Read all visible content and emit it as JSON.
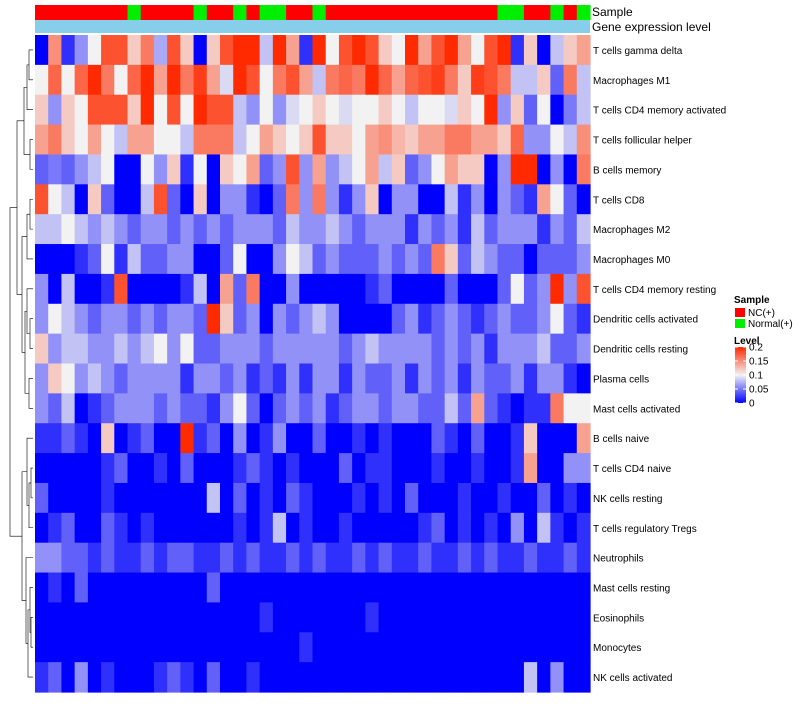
{
  "chart_data": {
    "type": "heatmap",
    "annotation_labels": [
      "Sample",
      "Gene expression level"
    ],
    "rows": [
      "T cells gamma delta",
      "Macrophages M1",
      "T cells CD4 memory activated",
      "T cells follicular helper",
      "B cells memory",
      "T cells CD8",
      "Macrophages M2",
      "Macrophages M0",
      "T cells CD4 memory resting",
      "Dendritic cells activated",
      "Dendritic cells resting",
      "Plasma cells",
      "Mast cells activated",
      "B cells naive",
      "T cells CD4 naive",
      "NK cells resting",
      "T cells regulatory  Tregs",
      "Neutrophils",
      "Mast cells resting",
      "Eosinophils",
      "Monocytes",
      "NK cells activated"
    ],
    "samples": [
      "NC",
      "NC",
      "NC",
      "NC",
      "NC",
      "NC",
      "NC",
      "Normal",
      "NC",
      "NC",
      "NC",
      "NC",
      "Normal",
      "NC",
      "NC",
      "Normal",
      "NC",
      "Normal",
      "Normal",
      "NC",
      "NC",
      "Normal",
      "NC",
      "NC",
      "NC",
      "NC",
      "NC",
      "NC",
      "NC",
      "NC",
      "NC",
      "NC",
      "NC",
      "NC",
      "NC",
      "Normal",
      "Normal",
      "NC",
      "NC",
      "Normal",
      "NC",
      "Normal"
    ],
    "sample_colors": {
      "NC": "#ff0000",
      "Normal": "#00ee00"
    },
    "expression_bar_color": "#87ceeb",
    "values": [
      [
        0.0,
        0.15,
        0.02,
        0.06,
        0.1,
        0.18,
        0.18,
        0.12,
        0.16,
        0.07,
        0.18,
        0.12,
        0.0,
        0.12,
        0.18,
        0.22,
        0.22,
        0.08,
        0.2,
        0.14,
        0.02,
        0.2,
        0.1,
        0.18,
        0.22,
        0.18,
        0.12,
        0.1,
        0.2,
        0.14,
        0.18,
        0.2,
        0.14,
        0.1,
        0.18,
        0.22,
        0.02,
        0.12,
        0.0,
        0.08,
        0.12,
        0.14
      ],
      [
        0.1,
        0.17,
        0.1,
        0.17,
        0.2,
        0.16,
        0.1,
        0.17,
        0.2,
        0.14,
        0.2,
        0.16,
        0.19,
        0.14,
        0.09,
        0.2,
        0.18,
        0.1,
        0.16,
        0.18,
        0.14,
        0.08,
        0.16,
        0.17,
        0.16,
        0.2,
        0.17,
        0.14,
        0.17,
        0.18,
        0.19,
        0.16,
        0.12,
        0.19,
        0.18,
        0.16,
        0.08,
        0.08,
        0.12,
        0.04,
        0.16,
        0.08
      ],
      [
        0.12,
        0.06,
        0.12,
        0.1,
        0.18,
        0.18,
        0.18,
        0.12,
        0.2,
        0.1,
        0.18,
        0.1,
        0.2,
        0.18,
        0.18,
        0.08,
        0.06,
        0.1,
        0.06,
        0.09,
        0.1,
        0.12,
        0.1,
        0.09,
        0.1,
        0.1,
        0.12,
        0.1,
        0.08,
        0.1,
        0.1,
        0.09,
        0.12,
        0.1,
        0.22,
        0.06,
        0.12,
        0.04,
        0.1,
        0.0,
        0.05,
        0.08
      ],
      [
        0.14,
        0.16,
        0.12,
        0.1,
        0.14,
        0.1,
        0.08,
        0.14,
        0.14,
        0.1,
        0.1,
        0.08,
        0.16,
        0.16,
        0.16,
        0.08,
        0.1,
        0.14,
        0.12,
        0.1,
        0.12,
        0.18,
        0.12,
        0.12,
        0.1,
        0.14,
        0.15,
        0.13,
        0.12,
        0.14,
        0.14,
        0.16,
        0.16,
        0.14,
        0.14,
        0.12,
        0.17,
        0.06,
        0.06,
        0.1,
        0.08,
        0.15
      ],
      [
        0.04,
        0.05,
        0.04,
        0.06,
        0.08,
        0.1,
        0.0,
        0.0,
        0.1,
        0.06,
        0.12,
        0.02,
        0.1,
        0.0,
        0.12,
        0.1,
        0.14,
        0.04,
        0.06,
        0.18,
        0.06,
        0.14,
        0.06,
        0.08,
        0.1,
        0.14,
        0.08,
        0.12,
        0.04,
        0.06,
        0.1,
        0.14,
        0.12,
        0.12,
        0.0,
        0.06,
        0.2,
        0.22,
        0.0,
        0.06,
        0.0,
        0.16
      ],
      [
        0.18,
        0.1,
        0.08,
        0.0,
        0.12,
        0.04,
        0.0,
        0.0,
        0.08,
        0.18,
        0.04,
        0.0,
        0.12,
        0.0,
        0.06,
        0.06,
        0.02,
        0.0,
        0.04,
        0.16,
        0.06,
        0.16,
        0.06,
        0.02,
        0.06,
        0.12,
        0.0,
        0.06,
        0.06,
        0.0,
        0.0,
        0.08,
        0.02,
        0.06,
        0.0,
        0.06,
        0.04,
        0.02,
        0.14,
        0.1,
        0.04,
        0.0
      ],
      [
        0.08,
        0.08,
        0.1,
        0.08,
        0.06,
        0.08,
        0.06,
        0.04,
        0.06,
        0.06,
        0.04,
        0.06,
        0.04,
        0.06,
        0.04,
        0.06,
        0.06,
        0.06,
        0.04,
        0.08,
        0.06,
        0.06,
        0.08,
        0.06,
        0.04,
        0.06,
        0.06,
        0.06,
        0.02,
        0.06,
        0.04,
        0.06,
        0.02,
        0.08,
        0.04,
        0.06,
        0.06,
        0.06,
        0.02,
        0.06,
        0.04,
        0.08
      ],
      [
        0.0,
        0.0,
        0.0,
        0.02,
        0.04,
        0.1,
        0.02,
        0.08,
        0.04,
        0.04,
        0.06,
        0.06,
        0.0,
        0.0,
        0.04,
        0.1,
        0.0,
        0.0,
        0.06,
        0.1,
        0.08,
        0.04,
        0.06,
        0.04,
        0.04,
        0.04,
        0.06,
        0.04,
        0.06,
        0.04,
        0.16,
        0.12,
        0.04,
        0.08,
        0.06,
        0.04,
        0.04,
        0.0,
        0.04,
        0.04,
        0.04,
        0.06
      ],
      [
        0.06,
        0.0,
        0.08,
        0.0,
        0.0,
        0.02,
        0.18,
        0.0,
        0.0,
        0.0,
        0.0,
        0.02,
        0.08,
        0.0,
        0.14,
        0.04,
        0.16,
        0.0,
        0.0,
        0.06,
        0.0,
        0.0,
        0.0,
        0.0,
        0.0,
        0.02,
        0.04,
        0.0,
        0.0,
        0.0,
        0.0,
        0.04,
        0.0,
        0.0,
        0.0,
        0.04,
        0.1,
        0.04,
        0.06,
        0.2,
        0.06,
        0.18
      ],
      [
        0.06,
        0.1,
        0.08,
        0.06,
        0.04,
        0.06,
        0.06,
        0.04,
        0.06,
        0.04,
        0.06,
        0.06,
        0.04,
        0.2,
        0.12,
        0.04,
        0.06,
        0.0,
        0.06,
        0.04,
        0.06,
        0.08,
        0.06,
        0.0,
        0.0,
        0.0,
        0.0,
        0.04,
        0.06,
        0.02,
        0.04,
        0.06,
        0.04,
        0.02,
        0.04,
        0.06,
        0.04,
        0.04,
        0.06,
        0.1,
        0.04,
        0.02
      ],
      [
        0.12,
        0.06,
        0.08,
        0.08,
        0.06,
        0.06,
        0.08,
        0.06,
        0.08,
        0.1,
        0.06,
        0.1,
        0.04,
        0.04,
        0.06,
        0.06,
        0.06,
        0.04,
        0.06,
        0.06,
        0.06,
        0.06,
        0.06,
        0.04,
        0.06,
        0.08,
        0.06,
        0.06,
        0.06,
        0.06,
        0.04,
        0.06,
        0.04,
        0.06,
        0.02,
        0.06,
        0.06,
        0.06,
        0.08,
        0.04,
        0.04,
        0.06
      ],
      [
        0.06,
        0.12,
        0.1,
        0.06,
        0.08,
        0.06,
        0.04,
        0.06,
        0.06,
        0.06,
        0.06,
        0.02,
        0.06,
        0.06,
        0.04,
        0.06,
        0.02,
        0.04,
        0.02,
        0.06,
        0.02,
        0.06,
        0.06,
        0.02,
        0.06,
        0.04,
        0.04,
        0.06,
        0.02,
        0.06,
        0.04,
        0.06,
        0.02,
        0.06,
        0.04,
        0.04,
        0.06,
        0.02,
        0.06,
        0.06,
        0.02,
        0.0
      ],
      [
        0.06,
        0.04,
        0.08,
        0.0,
        0.02,
        0.04,
        0.06,
        0.06,
        0.06,
        0.04,
        0.06,
        0.04,
        0.04,
        0.02,
        0.06,
        0.1,
        0.04,
        0.0,
        0.04,
        0.06,
        0.04,
        0.06,
        0.02,
        0.04,
        0.06,
        0.06,
        0.04,
        0.06,
        0.06,
        0.04,
        0.04,
        0.08,
        0.04,
        0.14,
        0.04,
        0.02,
        0.0,
        0.02,
        0.02,
        0.16,
        0.1,
        0.1
      ],
      [
        0.02,
        0.02,
        0.04,
        0.02,
        0.0,
        0.12,
        0.0,
        0.02,
        0.04,
        0.0,
        0.0,
        0.22,
        0.02,
        0.04,
        0.0,
        0.06,
        0.0,
        0.02,
        0.06,
        0.0,
        0.0,
        0.04,
        0.0,
        0.0,
        0.02,
        0.0,
        0.02,
        0.0,
        0.0,
        0.0,
        0.04,
        0.02,
        0.0,
        0.04,
        0.0,
        0.0,
        0.02,
        0.12,
        0.0,
        0.0,
        0.0,
        0.14
      ],
      [
        0.0,
        0.0,
        0.0,
        0.0,
        0.0,
        0.02,
        0.04,
        0.0,
        0.0,
        0.02,
        0.0,
        0.04,
        0.0,
        0.0,
        0.0,
        0.02,
        0.04,
        0.02,
        0.0,
        0.02,
        0.0,
        0.0,
        0.0,
        0.04,
        0.0,
        0.02,
        0.02,
        0.0,
        0.0,
        0.0,
        0.02,
        0.0,
        0.0,
        0.02,
        0.0,
        0.0,
        0.02,
        0.14,
        0.0,
        0.0,
        0.06,
        0.06
      ],
      [
        0.04,
        0.0,
        0.0,
        0.0,
        0.0,
        0.02,
        0.0,
        0.0,
        0.0,
        0.0,
        0.0,
        0.0,
        0.0,
        0.08,
        0.0,
        0.04,
        0.0,
        0.02,
        0.0,
        0.04,
        0.02,
        0.0,
        0.0,
        0.0,
        0.02,
        0.0,
        0.02,
        0.0,
        0.04,
        0.0,
        0.0,
        0.0,
        0.02,
        0.0,
        0.0,
        0.02,
        0.0,
        0.0,
        0.04,
        0.0,
        0.02,
        0.0
      ],
      [
        0.0,
        0.02,
        0.04,
        0.0,
        0.0,
        0.04,
        0.02,
        0.0,
        0.02,
        0.0,
        0.0,
        0.0,
        0.0,
        0.0,
        0.0,
        0.02,
        0.0,
        0.02,
        0.08,
        0.0,
        0.02,
        0.0,
        0.0,
        0.02,
        0.0,
        0.0,
        0.0,
        0.0,
        0.0,
        0.02,
        0.04,
        0.0,
        0.02,
        0.0,
        0.02,
        0.0,
        0.06,
        0.0,
        0.08,
        0.02,
        0.0,
        0.02
      ],
      [
        0.06,
        0.06,
        0.04,
        0.04,
        0.02,
        0.04,
        0.02,
        0.02,
        0.04,
        0.02,
        0.04,
        0.04,
        0.02,
        0.02,
        0.04,
        0.02,
        0.04,
        0.02,
        0.02,
        0.04,
        0.02,
        0.04,
        0.02,
        0.02,
        0.04,
        0.02,
        0.04,
        0.02,
        0.02,
        0.04,
        0.02,
        0.02,
        0.04,
        0.02,
        0.04,
        0.02,
        0.02,
        0.04,
        0.02,
        0.02,
        0.04,
        0.02
      ],
      [
        0.0,
        0.02,
        0.0,
        0.04,
        0.0,
        0.0,
        0.0,
        0.0,
        0.0,
        0.0,
        0.0,
        0.0,
        0.0,
        0.04,
        0.0,
        0.0,
        0.0,
        0.0,
        0.0,
        0.0,
        0.0,
        0.0,
        0.0,
        0.0,
        0.0,
        0.0,
        0.0,
        0.0,
        0.0,
        0.0,
        0.0,
        0.0,
        0.0,
        0.0,
        0.0,
        0.0,
        0.0,
        0.0,
        0.0,
        0.0,
        0.0,
        0.0
      ],
      [
        0.0,
        0.0,
        0.0,
        0.0,
        0.0,
        0.0,
        0.0,
        0.0,
        0.0,
        0.0,
        0.0,
        0.0,
        0.0,
        0.0,
        0.0,
        0.0,
        0.0,
        0.02,
        0.0,
        0.0,
        0.0,
        0.0,
        0.0,
        0.0,
        0.0,
        0.02,
        0.0,
        0.0,
        0.0,
        0.0,
        0.0,
        0.0,
        0.0,
        0.0,
        0.0,
        0.0,
        0.0,
        0.0,
        0.0,
        0.0,
        0.0,
        0.0
      ],
      [
        0.0,
        0.0,
        0.0,
        0.0,
        0.0,
        0.0,
        0.0,
        0.0,
        0.0,
        0.0,
        0.0,
        0.0,
        0.0,
        0.0,
        0.0,
        0.0,
        0.0,
        0.0,
        0.0,
        0.0,
        0.02,
        0.0,
        0.0,
        0.0,
        0.0,
        0.0,
        0.0,
        0.0,
        0.0,
        0.0,
        0.0,
        0.0,
        0.0,
        0.0,
        0.0,
        0.0,
        0.0,
        0.0,
        0.0,
        0.0,
        0.0,
        0.0
      ],
      [
        0.02,
        0.04,
        0.0,
        0.06,
        0.0,
        0.02,
        0.0,
        0.0,
        0.0,
        0.02,
        0.04,
        0.02,
        0.0,
        0.04,
        0.0,
        0.0,
        0.02,
        0.0,
        0.0,
        0.0,
        0.0,
        0.0,
        0.0,
        0.0,
        0.0,
        0.0,
        0.0,
        0.0,
        0.0,
        0.0,
        0.0,
        0.0,
        0.0,
        0.0,
        0.0,
        0.0,
        0.0,
        0.08,
        0.0,
        0.06,
        0.0,
        0.0
      ]
    ],
    "color_scale": {
      "stops": [
        {
          "value": 0.0,
          "color": "#0000ff"
        },
        {
          "value": 0.1,
          "color": "#f2f2f2"
        },
        {
          "value": 0.2,
          "color": "#ff2a00"
        }
      ]
    },
    "legend": {
      "sample_title": "Sample",
      "sample_entries": [
        {
          "label": "NC(+)",
          "color": "#ff0000"
        },
        {
          "label": "Normal(+)",
          "color": "#00ee00"
        }
      ],
      "level_title": "Level",
      "level_ticks": [
        "0.2",
        "0.15",
        "0.1",
        "0.05",
        "0"
      ],
      "level_tick_values": [
        0.2,
        0.15,
        0.1,
        0.05,
        0
      ]
    },
    "dendrogram": "row clustering tree (left side)"
  }
}
